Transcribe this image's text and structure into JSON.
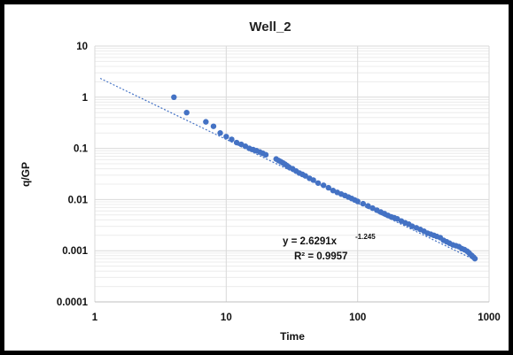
{
  "chart_data": {
    "type": "scatter",
    "title": "Well_2",
    "xlabel": "Time",
    "ylabel": "q/GP",
    "x_scale": "log",
    "y_scale": "log",
    "xlim": [
      1,
      1000
    ],
    "ylim": [
      0.0001,
      10
    ],
    "x_ticks": [
      "1",
      "10",
      "100",
      "1000"
    ],
    "y_ticks": [
      "10",
      "1",
      "0.1",
      "0.01",
      "0.001",
      "0.0001"
    ],
    "grid": true,
    "legend": "none",
    "colors": {
      "points": "#4472C4",
      "trendline": "#4472C4",
      "grid_major": "#d9d9d9",
      "grid_minor": "#ececec"
    },
    "series": [
      {
        "x": [
          4,
          5,
          7,
          8,
          9,
          10,
          11,
          12,
          13,
          14,
          15,
          16,
          17,
          18,
          19,
          20,
          24,
          25,
          26,
          27,
          28,
          29,
          30,
          32,
          34,
          36,
          38,
          40,
          43,
          46,
          50,
          55,
          60,
          65,
          70,
          75,
          80,
          85,
          90,
          95,
          100,
          110,
          120,
          130,
          140,
          150,
          160,
          170,
          180,
          190,
          200,
          215,
          230,
          245,
          260,
          280,
          300,
          320,
          340,
          360,
          380,
          400,
          425,
          450,
          475,
          500,
          530,
          560,
          590,
          620,
          650,
          680,
          700,
          720,
          740,
          760,
          780
        ],
        "y": [
          1.0,
          0.5,
          0.33,
          0.27,
          0.2,
          0.17,
          0.15,
          0.13,
          0.12,
          0.11,
          0.1,
          0.095,
          0.09,
          0.085,
          0.08,
          0.075,
          0.062,
          0.058,
          0.055,
          0.052,
          0.049,
          0.046,
          0.043,
          0.04,
          0.036,
          0.033,
          0.031,
          0.029,
          0.026,
          0.024,
          0.021,
          0.019,
          0.017,
          0.015,
          0.0138,
          0.0128,
          0.012,
          0.0112,
          0.0105,
          0.0098,
          0.0092,
          0.0083,
          0.0075,
          0.0068,
          0.0062,
          0.0057,
          0.0053,
          0.0049,
          0.0046,
          0.0044,
          0.0042,
          0.0038,
          0.0035,
          0.0033,
          0.003,
          0.0028,
          0.0026,
          0.0024,
          0.0022,
          0.0021,
          0.002,
          0.0019,
          0.0018,
          0.0016,
          0.0015,
          0.0014,
          0.0013,
          0.00125,
          0.0012,
          0.0011,
          0.00105,
          0.00098,
          0.00092,
          0.00085,
          0.0008,
          0.00075,
          0.0007
        ]
      }
    ],
    "trendline": {
      "type": "power",
      "a": 2.6291,
      "b": -1.245,
      "x_range": [
        1.1,
        780
      ]
    },
    "annotations": {
      "equation_main": "y = 2.6291x",
      "equation_exp": "-1.245",
      "r_squared": "R² = 0.9957"
    }
  }
}
